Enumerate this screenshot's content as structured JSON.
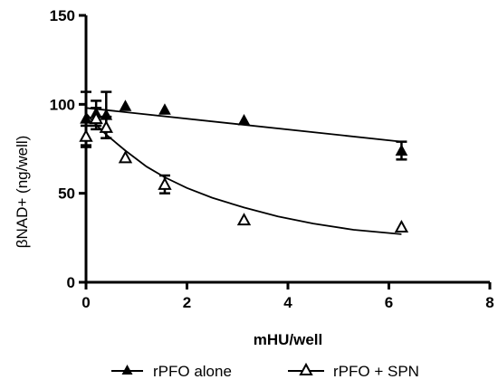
{
  "chart_data": {
    "type": "scatter",
    "title": "",
    "xlabel": "mHU/well",
    "ylabel": "βNAD+ (ng/well)",
    "xlim": [
      0,
      8
    ],
    "ylim": [
      0,
      150
    ],
    "x_ticks": [
      0,
      2,
      4,
      6,
      8
    ],
    "y_ticks": [
      0,
      50,
      100,
      150
    ],
    "x_tick_labels": [
      "0",
      "2",
      "4",
      "6",
      "8"
    ],
    "y_tick_labels": [
      "0",
      "50",
      "100",
      "150"
    ],
    "grid": false,
    "legend_position": "bottom",
    "series": [
      {
        "name": "rPFO alone",
        "marker": "filled-triangle",
        "color": "#000000",
        "points": [
          {
            "x": 0,
            "y": 92,
            "err": 15
          },
          {
            "x": 0.2,
            "y": 95,
            "err": 7
          },
          {
            "x": 0.4,
            "y": 94,
            "err": 13
          },
          {
            "x": 0.78,
            "y": 99,
            "err": 0
          },
          {
            "x": 1.56,
            "y": 97,
            "err": 0
          },
          {
            "x": 3.13,
            "y": 91,
            "err": 0
          },
          {
            "x": 6.25,
            "y": 74,
            "err": 5
          }
        ],
        "fit": [
          {
            "x": 0,
            "y": 98
          },
          {
            "x": 6.25,
            "y": 79
          }
        ]
      },
      {
        "name": "rPFO + SPN",
        "marker": "open-triangle",
        "color": "#000000",
        "points": [
          {
            "x": 0,
            "y": 82,
            "err": 6
          },
          {
            "x": 0.2,
            "y": 92,
            "err": 6
          },
          {
            "x": 0.4,
            "y": 87,
            "err": 6
          },
          {
            "x": 0.78,
            "y": 70,
            "err": 0
          },
          {
            "x": 1.56,
            "y": 55,
            "err": 5
          },
          {
            "x": 3.13,
            "y": 35,
            "err": 0
          },
          {
            "x": 6.25,
            "y": 31,
            "err": 0
          }
        ],
        "fit": [
          {
            "x": 0,
            "y": 95
          },
          {
            "x": 0.2,
            "y": 88.5
          },
          {
            "x": 0.4,
            "y": 83
          },
          {
            "x": 0.78,
            "y": 74
          },
          {
            "x": 1.2,
            "y": 65
          },
          {
            "x": 1.56,
            "y": 59
          },
          {
            "x": 2.0,
            "y": 53
          },
          {
            "x": 2.5,
            "y": 47.5
          },
          {
            "x": 3.13,
            "y": 42
          },
          {
            "x": 3.8,
            "y": 37
          },
          {
            "x": 4.5,
            "y": 33
          },
          {
            "x": 5.3,
            "y": 29.5
          },
          {
            "x": 6.25,
            "y": 27
          }
        ]
      }
    ]
  }
}
